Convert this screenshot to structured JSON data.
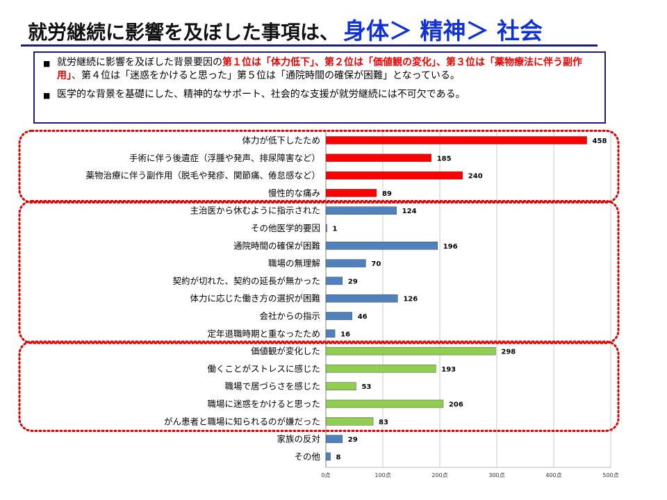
{
  "title": {
    "main": "就労継続に影響を及ぼした事項は、",
    "highlight": "身体＞ 精神＞ 社会"
  },
  "summary": {
    "bullet_icon": "black-square-bullet",
    "p1_a": "就労継続に影響を及ぼした背景要因の",
    "p1_b": "第１位は「体力低下」、第２位は「価値観の変化」、第３位は「薬物療法に伴う副作用」",
    "p1_c": "、第４位は「迷惑をかけると思った」第５位は「通院時間の確保が困難」となっている。",
    "p2": "医学的な背景を基礎にした、精神的なサポート、社会的な支援が就労継続には不可欠である。"
  },
  "colors": {
    "physical": "#ff0000",
    "medical": "#4f81bd",
    "psychological": "#8fce4f",
    "highlight_outline": "#e00000",
    "title_blue": "#1030d8"
  },
  "chart_data": {
    "type": "bar",
    "orientation": "horizontal",
    "categories": [
      "体力が低下したため",
      "手術に伴う後遺症（浮腫や発声、排尿障害など）",
      "薬物治療に伴う副作用（脱毛や発疹、関節痛、倦怠感など）",
      "慢性的な痛み",
      "主治医から休むように指示された",
      "その他医学的要因",
      "通院時間の確保が困難",
      "職場の無理解",
      "契約が切れた、契約の延長が無かった",
      "体力に応じた働き方の選択が困難",
      "会社からの指示",
      "定年退職時期と重なったため",
      "価値観が変化した",
      "働くことがストレスに感じた",
      "職場で居づらさを感じた",
      "職場に迷惑をかけると思った",
      "がん患者と職場に知られるのが嫌だった",
      "家族の反対",
      "その他"
    ],
    "values": [
      458,
      185,
      240,
      89,
      124,
      1,
      196,
      70,
      29,
      126,
      46,
      16,
      298,
      193,
      53,
      206,
      83,
      29,
      8
    ],
    "groups": [
      "physical",
      "physical",
      "physical",
      "physical",
      "medical",
      "medical",
      "medical",
      "medical",
      "medical",
      "medical",
      "medical",
      "medical",
      "psychological",
      "psychological",
      "psychological",
      "psychological",
      "psychological",
      "medical",
      "medical"
    ],
    "xlim": [
      0,
      500
    ],
    "xticks": [
      0,
      100,
      200,
      300,
      400,
      500
    ],
    "xtick_labels": [
      "0点",
      "100点",
      "200点",
      "300点",
      "400点",
      "500点"
    ],
    "grid": true,
    "highlight_groups": [
      {
        "from": 0,
        "to": 3
      },
      {
        "from": 4,
        "to": 11
      },
      {
        "from": 12,
        "to": 16
      }
    ]
  }
}
